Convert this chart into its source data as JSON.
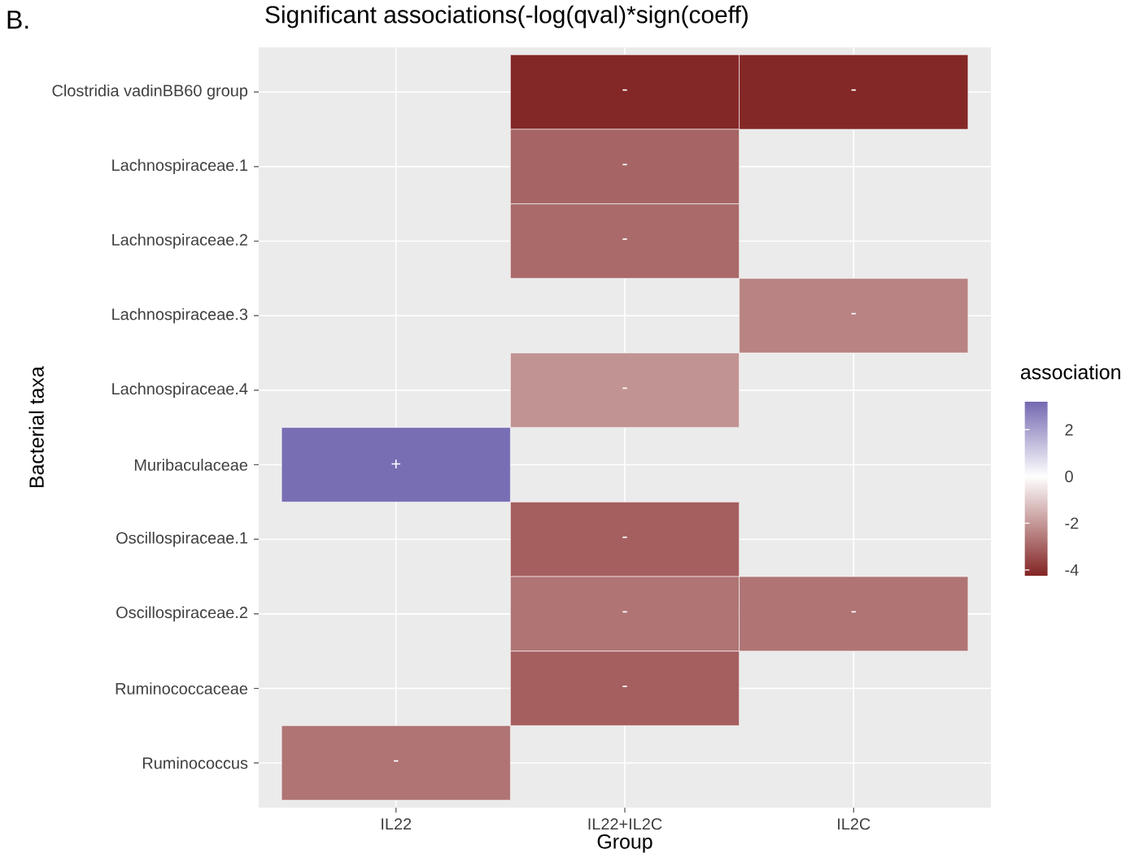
{
  "chart_data": {
    "type": "heatmap",
    "title": "Significant associations(-log(qval)*sign(coeff)",
    "xlabel": "Group",
    "ylabel": "Bacterial taxa",
    "clabel": "association",
    "annotations": [
      "B."
    ],
    "categories": [
      "IL22",
      "IL22+IL2C",
      "IL2C"
    ],
    "y_categories": [
      "Clostridia vadinBB60 group",
      "Lachnospiraceae.1",
      "Lachnospiraceae.2",
      "Lachnospiraceae.3",
      "Lachnospiraceae.4",
      "Muribaculaceae",
      "Oscillospiraceae.1",
      "Oscillospiraceae.2",
      "Ruminococcaceae",
      "Ruminococcus"
    ],
    "cells": [
      [
        null,
        -4.2,
        -4.2
      ],
      [
        null,
        -3.0,
        null
      ],
      [
        null,
        -2.9,
        null
      ],
      [
        null,
        null,
        -2.4
      ],
      [
        null,
        -2.1,
        null
      ],
      [
        3.1,
        null,
        null
      ],
      [
        null,
        -3.1,
        null
      ],
      [
        null,
        -2.7,
        -2.7
      ],
      [
        null,
        -3.1,
        null
      ],
      [
        -2.7,
        null,
        null
      ]
    ],
    "cell_labels": [
      [
        null,
        "-",
        "-"
      ],
      [
        null,
        "-",
        null
      ],
      [
        null,
        "-",
        null
      ],
      [
        null,
        null,
        "-"
      ],
      [
        null,
        "-",
        null
      ],
      [
        "+",
        null,
        null
      ],
      [
        null,
        "-",
        null
      ],
      [
        null,
        "-",
        "-"
      ],
      [
        null,
        "-",
        null
      ],
      [
        "-",
        null,
        null
      ]
    ],
    "clim": [
      -4.25,
      3.2
    ],
    "cticks": [
      2,
      0,
      -2,
      -4
    ],
    "grid": true
  }
}
